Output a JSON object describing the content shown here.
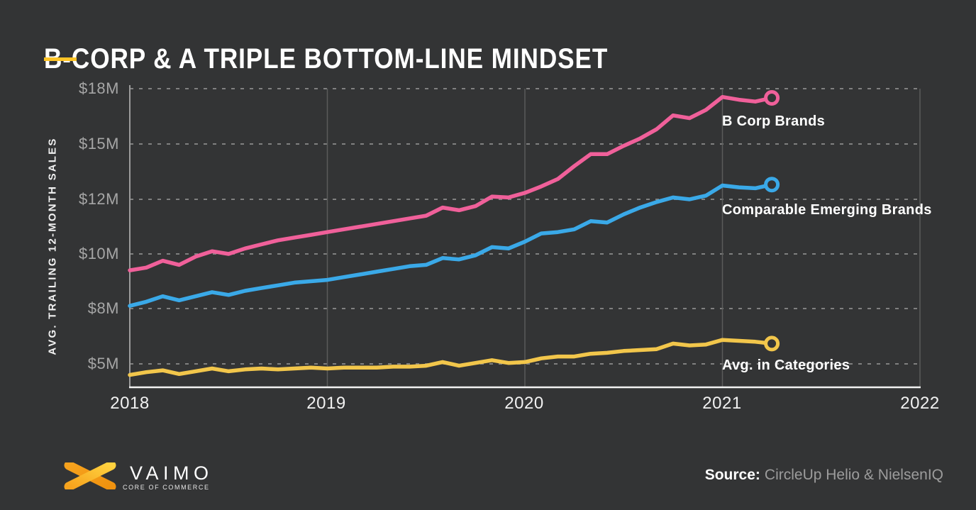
{
  "title": "B-CORP & A TRIPLE BOTTOM-LINE MINDSET",
  "colors": {
    "background": "#333435",
    "title_text": "#FFFFFF",
    "accent_underline": "#FFC527",
    "grid_line_dashed": "#808080",
    "grid_line_vertical": "#5B5B5B",
    "axis_line": "#F2F2F2",
    "y_axis_line": "#9B9B9B",
    "y_tick_text": "#A6A6A6",
    "x_tick_text": "#F1F1F1",
    "series_pink": "#F0609A",
    "series_blue": "#3AA9E8",
    "series_yellow": "#F2C64B",
    "logo_orange": "#F6A21D",
    "logo_yellow": "#FFD23F"
  },
  "footer": {
    "logo_text": "VAIMO",
    "logo_tagline": "CORE OF COMMERCE",
    "source_label": "Source:",
    "source_value": "CircleUp Helio & NielsenIQ"
  },
  "chart_data": {
    "type": "line",
    "title": "B-CORP & A TRIPLE BOTTOM-LINE MINDSET",
    "sampling": "monthly",
    "points_per_series": 40,
    "x_start_year": 2018,
    "x_end_year": 2021.25,
    "x_axis": {
      "ticks": [
        "2018",
        "2019",
        "2020",
        "2021",
        "2022"
      ],
      "start": 2018,
      "end": 2022
    },
    "y_axis": {
      "label": "AVG. TRAILING 12-MONTH SALES",
      "ticks": [
        "$18M",
        "$15M",
        "$12M",
        "$10M",
        "$8M",
        "$5M"
      ],
      "tick_values": [
        18,
        15,
        12,
        10,
        8,
        5
      ],
      "unit": "million USD",
      "note": "tick labels are evenly spaced; value scale is non-linear between labeled gridlines"
    },
    "grid": {
      "horizontal_style": "dashed",
      "vertical_style": "solid"
    },
    "annotation_style": "series name printed at line end with open-circle endpoint marker",
    "series": [
      {
        "name": "B Corp Brands",
        "color": "#F0609A",
        "values": [
          9.4,
          9.5,
          9.75,
          9.6,
          9.9,
          10.1,
          10.0,
          10.2,
          10.35,
          10.5,
          10.6,
          10.7,
          10.8,
          10.9,
          11.0,
          11.1,
          11.2,
          11.3,
          11.4,
          11.7,
          11.6,
          11.75,
          12.15,
          12.1,
          12.35,
          12.7,
          13.1,
          13.8,
          14.45,
          14.45,
          14.9,
          15.3,
          15.8,
          16.55,
          16.4,
          16.85,
          17.55,
          17.4,
          17.3,
          17.5
        ]
      },
      {
        "name": "Comparable Emerging Brands",
        "color": "#3AA9E8",
        "values": [
          8.1,
          8.25,
          8.45,
          8.3,
          8.45,
          8.6,
          8.5,
          8.65,
          8.75,
          8.85,
          8.95,
          9.0,
          9.05,
          9.15,
          9.25,
          9.35,
          9.45,
          9.55,
          9.6,
          9.85,
          9.8,
          9.95,
          10.25,
          10.2,
          10.45,
          10.75,
          10.8,
          10.9,
          11.2,
          11.15,
          11.45,
          11.7,
          11.9,
          12.1,
          12.0,
          12.2,
          12.75,
          12.65,
          12.6,
          12.8
        ]
      },
      {
        "name": "Avg. in Categories",
        "color": "#F2C64B",
        "values": [
          4.4,
          4.55,
          4.65,
          4.45,
          4.6,
          4.75,
          4.6,
          4.7,
          4.75,
          4.7,
          4.75,
          4.8,
          4.75,
          4.8,
          4.8,
          4.8,
          4.85,
          4.85,
          4.9,
          5.1,
          4.9,
          5.05,
          5.2,
          5.05,
          5.1,
          5.3,
          5.4,
          5.4,
          5.55,
          5.6,
          5.7,
          5.75,
          5.8,
          6.1,
          6.0,
          6.05,
          6.3,
          6.25,
          6.2,
          6.1
        ]
      }
    ]
  }
}
